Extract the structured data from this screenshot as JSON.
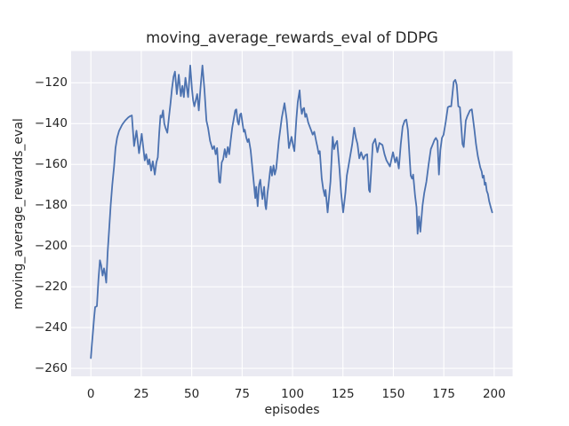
{
  "figure": {
    "background": "#ffffff"
  },
  "chart_data": {
    "type": "line",
    "title": "moving_average_rewards_eval of DDPG",
    "xlabel": "episodes",
    "ylabel": "moving_average_rewards_eval",
    "x_ticks": [
      0,
      25,
      50,
      75,
      100,
      125,
      150,
      175,
      200
    ],
    "y_ticks": [
      -120,
      -140,
      -160,
      -180,
      -200,
      -220,
      -240,
      -260
    ],
    "xlim": [
      -9.8,
      209.1
    ],
    "ylim": [
      -263.9,
      -104.4
    ],
    "grid": true,
    "legend_position": "none",
    "style": {
      "axes_background": "#EAEAF2",
      "grid_color": "#FFFFFF",
      "line_color": "#4C72B0",
      "text_color": "#262626",
      "line_width": 1.8
    },
    "series": [
      {
        "name": "moving_average_rewards_eval",
        "points": [
          [
            0,
            -255
          ],
          [
            0.5,
            -248
          ],
          [
            1,
            -242.5
          ],
          [
            1.6,
            -235
          ],
          [
            2.1,
            -230
          ],
          [
            3,
            -229.5
          ],
          [
            3.8,
            -216
          ],
          [
            4.5,
            -207
          ],
          [
            5.1,
            -209.5
          ],
          [
            5.8,
            -214.5
          ],
          [
            6.5,
            -211
          ],
          [
            7.1,
            -214
          ],
          [
            7.6,
            -218
          ],
          [
            8.3,
            -203
          ],
          [
            9,
            -193
          ],
          [
            9.8,
            -180
          ],
          [
            10.6,
            -170
          ],
          [
            11.5,
            -161
          ],
          [
            12.2,
            -152
          ],
          [
            13,
            -147
          ],
          [
            14,
            -143.5
          ],
          [
            15.5,
            -140.5
          ],
          [
            17,
            -138.5
          ],
          [
            18.5,
            -137
          ],
          [
            19.5,
            -136.3
          ],
          [
            20.3,
            -136
          ],
          [
            21.4,
            -151
          ],
          [
            22.6,
            -143.5
          ],
          [
            23.9,
            -154.5
          ],
          [
            25.2,
            -145
          ],
          [
            26.7,
            -158
          ],
          [
            27.4,
            -155
          ],
          [
            28.4,
            -160
          ],
          [
            29,
            -157.5
          ],
          [
            29.9,
            -163
          ],
          [
            30.7,
            -158.5
          ],
          [
            31.7,
            -165
          ],
          [
            32.5,
            -159
          ],
          [
            33.2,
            -156.5
          ],
          [
            33.9,
            -144.5
          ],
          [
            34.5,
            -136
          ],
          [
            35.1,
            -137
          ],
          [
            35.8,
            -133.5
          ],
          [
            36.4,
            -140
          ],
          [
            37,
            -142
          ],
          [
            37.9,
            -144.5
          ],
          [
            38.7,
            -137
          ],
          [
            39.5,
            -130
          ],
          [
            40.2,
            -123
          ],
          [
            41,
            -117
          ],
          [
            41.7,
            -114.5
          ],
          [
            42.6,
            -125.5
          ],
          [
            43.6,
            -116
          ],
          [
            44.6,
            -126.5
          ],
          [
            45.4,
            -121.5
          ],
          [
            46.1,
            -127
          ],
          [
            46.9,
            -117.5
          ],
          [
            48.2,
            -127
          ],
          [
            49.3,
            -111.5
          ],
          [
            50.1,
            -123
          ],
          [
            50.7,
            -128.5
          ],
          [
            51.3,
            -131.5
          ],
          [
            52,
            -128.5
          ],
          [
            52.7,
            -125.5
          ],
          [
            53.5,
            -133.5
          ],
          [
            54.4,
            -122
          ],
          [
            55.3,
            -111.5
          ],
          [
            56.3,
            -123
          ],
          [
            57.3,
            -138.5
          ],
          [
            58.1,
            -142
          ],
          [
            59.1,
            -148.5
          ],
          [
            60.3,
            -152.5
          ],
          [
            61.1,
            -151
          ],
          [
            61.9,
            -155
          ],
          [
            62.6,
            -152
          ],
          [
            63.6,
            -168.5
          ],
          [
            64.1,
            -169
          ],
          [
            64.9,
            -159
          ],
          [
            65.6,
            -157.5
          ],
          [
            66.4,
            -152.5
          ],
          [
            67.1,
            -156.5
          ],
          [
            67.9,
            -151.5
          ],
          [
            68.6,
            -155
          ],
          [
            69.3,
            -148.5
          ],
          [
            70.1,
            -142
          ],
          [
            70.8,
            -138
          ],
          [
            71.6,
            -133.5
          ],
          [
            72.1,
            -133
          ],
          [
            72.8,
            -139
          ],
          [
            73.3,
            -140.5
          ],
          [
            74,
            -135.5
          ],
          [
            74.5,
            -135
          ],
          [
            75.2,
            -140
          ],
          [
            75.8,
            -144
          ],
          [
            76.3,
            -143
          ],
          [
            77.1,
            -147
          ],
          [
            77.7,
            -149
          ],
          [
            78.3,
            -147.5
          ],
          [
            79.2,
            -153
          ],
          [
            80,
            -161
          ],
          [
            80.9,
            -170
          ],
          [
            81.5,
            -176.5
          ],
          [
            82,
            -171
          ],
          [
            82.7,
            -180.5
          ],
          [
            83.4,
            -170
          ],
          [
            84,
            -167.5
          ],
          [
            84.6,
            -173.5
          ],
          [
            85.1,
            -177
          ],
          [
            85.9,
            -171
          ],
          [
            86.5,
            -180
          ],
          [
            86.9,
            -182
          ],
          [
            87.6,
            -174
          ],
          [
            88.1,
            -170
          ],
          [
            88.8,
            -164
          ],
          [
            89.2,
            -161
          ],
          [
            89.8,
            -165.5
          ],
          [
            90.6,
            -160.5
          ],
          [
            91.2,
            -165
          ],
          [
            91.9,
            -162
          ],
          [
            93.2,
            -148.5
          ],
          [
            94.7,
            -137
          ],
          [
            96,
            -130
          ],
          [
            97.1,
            -138
          ],
          [
            98.2,
            -152
          ],
          [
            99.5,
            -146.5
          ],
          [
            100.4,
            -151.5
          ],
          [
            100.9,
            -153.5
          ],
          [
            101.9,
            -137.5
          ],
          [
            102.6,
            -129.5
          ],
          [
            103.5,
            -123.7
          ],
          [
            104.1,
            -131.6
          ],
          [
            104.6,
            -135.2
          ],
          [
            105.2,
            -132.8
          ],
          [
            105.7,
            -132.3
          ],
          [
            106.3,
            -136.7
          ],
          [
            106.8,
            -135.2
          ],
          [
            107.8,
            -139.5
          ],
          [
            109.2,
            -143.2
          ],
          [
            110,
            -145.4
          ],
          [
            110.8,
            -144
          ],
          [
            111.8,
            -149
          ],
          [
            112.3,
            -151.2
          ],
          [
            113,
            -154.8
          ],
          [
            113.5,
            -153.5
          ],
          [
            114.5,
            -167
          ],
          [
            115.2,
            -172
          ],
          [
            116,
            -175.5
          ],
          [
            116.4,
            -172.5
          ],
          [
            117.4,
            -183.5
          ],
          [
            118.8,
            -168.5
          ],
          [
            119.9,
            -146.5
          ],
          [
            120.6,
            -152.5
          ],
          [
            121.3,
            -150
          ],
          [
            122.1,
            -148.5
          ],
          [
            123.3,
            -162.5
          ],
          [
            124.1,
            -174
          ],
          [
            125.1,
            -183.5
          ],
          [
            126.2,
            -174
          ],
          [
            126.9,
            -165.5
          ],
          [
            127.7,
            -161
          ],
          [
            129.6,
            -150
          ],
          [
            130.6,
            -142
          ],
          [
            131.4,
            -147
          ],
          [
            132.2,
            -150
          ],
          [
            133.1,
            -157
          ],
          [
            134,
            -154
          ],
          [
            135.1,
            -157.5
          ],
          [
            136.1,
            -155.5
          ],
          [
            137,
            -155
          ],
          [
            137.9,
            -172.5
          ],
          [
            138.4,
            -173.5
          ],
          [
            139.8,
            -150
          ],
          [
            141,
            -147.5
          ],
          [
            142.1,
            -154
          ],
          [
            143.1,
            -149.5
          ],
          [
            144.6,
            -150.5
          ],
          [
            145.6,
            -155
          ],
          [
            146.6,
            -158
          ],
          [
            148.3,
            -161
          ],
          [
            149.8,
            -154
          ],
          [
            150.9,
            -159
          ],
          [
            151.7,
            -156.5
          ],
          [
            152.7,
            -162
          ],
          [
            153.7,
            -150
          ],
          [
            154.6,
            -141.5
          ],
          [
            155.6,
            -138.5
          ],
          [
            156.4,
            -138
          ],
          [
            157.2,
            -143
          ],
          [
            158.6,
            -165.5
          ],
          [
            159.3,
            -167
          ],
          [
            159.8,
            -165
          ],
          [
            160.8,
            -175.5
          ],
          [
            161.5,
            -181
          ],
          [
            162,
            -194
          ],
          [
            162.7,
            -185.5
          ],
          [
            163.4,
            -193
          ],
          [
            164.5,
            -180
          ],
          [
            165.3,
            -174
          ],
          [
            166.4,
            -168.5
          ],
          [
            167.5,
            -160
          ],
          [
            168.6,
            -152.5
          ],
          [
            169.6,
            -150
          ],
          [
            170.4,
            -148
          ],
          [
            171.1,
            -147
          ],
          [
            171.9,
            -148.5
          ],
          [
            172.6,
            -165
          ],
          [
            173.3,
            -153
          ],
          [
            174.1,
            -147
          ],
          [
            174.9,
            -145.5
          ],
          [
            176,
            -139
          ],
          [
            177,
            -132
          ],
          [
            177.8,
            -131.5
          ],
          [
            178.7,
            -131.5
          ],
          [
            179.9,
            -119.5
          ],
          [
            180.7,
            -118.5
          ],
          [
            181.4,
            -121
          ],
          [
            181.8,
            -126
          ],
          [
            182.2,
            -131.5
          ],
          [
            183,
            -132
          ],
          [
            184.3,
            -150
          ],
          [
            184.9,
            -151.5
          ],
          [
            185.9,
            -138.5
          ],
          [
            186.6,
            -136.5
          ],
          [
            188,
            -133.5
          ],
          [
            188.9,
            -133
          ],
          [
            190.2,
            -143
          ],
          [
            191,
            -150
          ],
          [
            191.9,
            -156
          ],
          [
            193.1,
            -161.5
          ],
          [
            193.8,
            -163.5
          ],
          [
            194.3,
            -166.5
          ],
          [
            194.8,
            -165.5
          ],
          [
            195.3,
            -170
          ],
          [
            195.8,
            -169
          ],
          [
            196.3,
            -173
          ],
          [
            196.9,
            -174.5
          ],
          [
            197.5,
            -178
          ],
          [
            198.3,
            -181
          ],
          [
            199,
            -183.5
          ]
        ]
      }
    ]
  }
}
